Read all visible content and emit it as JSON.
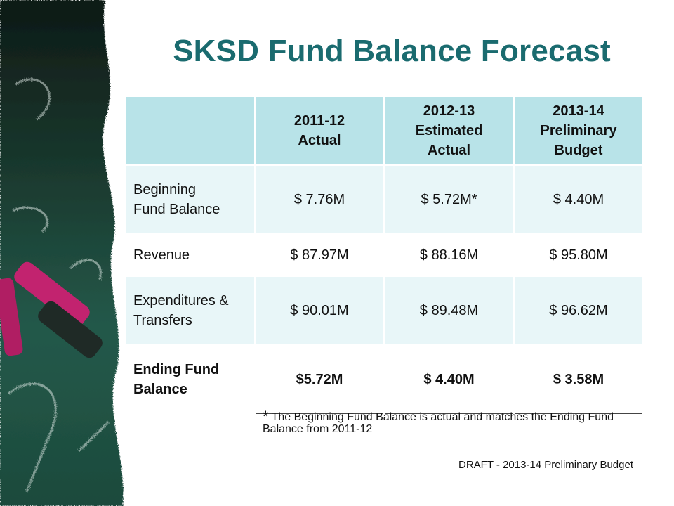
{
  "title": "SKSD Fund Balance Forecast",
  "table": {
    "headers": [
      "",
      "2011-12\nActual",
      "2012-13\nEstimated\nActual",
      "2013-14\nPreliminary\nBudget"
    ],
    "rows": [
      {
        "label": "Beginning\nFund Balance",
        "values": [
          "$ 7.76M",
          "$ 5.72M*",
          "$ 4.40M"
        ]
      },
      {
        "label": "Revenue",
        "values": [
          "$ 87.97M",
          "$ 88.16M",
          "$ 95.80M"
        ]
      },
      {
        "label": "Expenditures &\nTransfers",
        "values": [
          "$ 90.01M",
          "$ 89.48M",
          "$ 96.62M"
        ]
      },
      {
        "label": "Ending Fund\nBalance",
        "values": [
          "$5.72M",
          "$ 4.40M",
          "$ 3.58M"
        ]
      }
    ]
  },
  "footnote": {
    "marker": "*",
    "text": "The Beginning Fund Balance is actual and matches the Ending Fund Balance from 2011-12"
  },
  "footer": "DRAFT - 2013-14 Preliminary Budget",
  "colors": {
    "title": "#1a6b6f",
    "header_bg": "#b8e3e8",
    "row_tint": "#e8f6f8",
    "chalkboard": "#1f4a3a"
  }
}
